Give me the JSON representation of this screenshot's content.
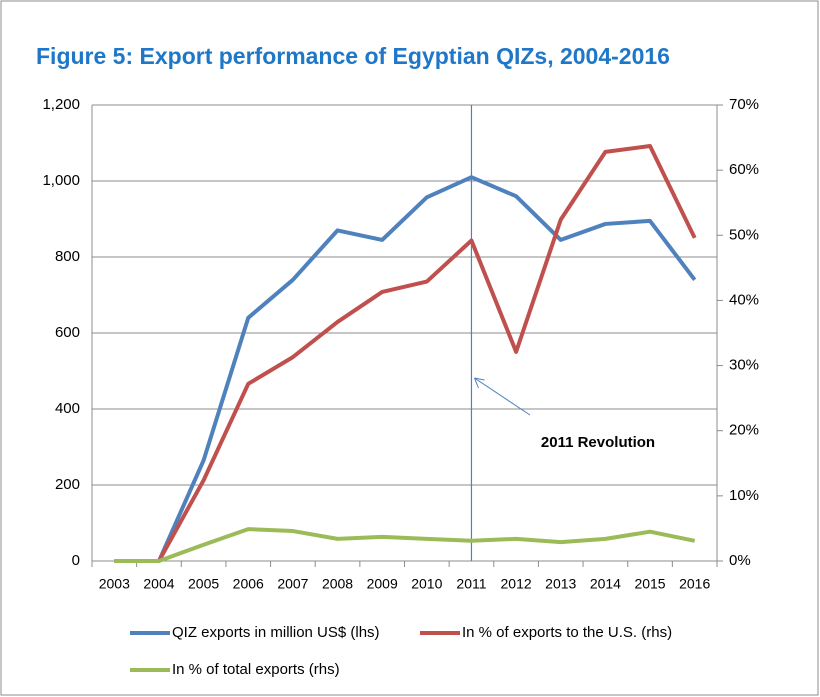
{
  "chart_data": {
    "type": "line",
    "title": "Figure 5:  Export performance of Egyptian QIZs, 2004-2016",
    "categories": [
      "2003",
      "2004",
      "2005",
      "2006",
      "2007",
      "2008",
      "2009",
      "2010",
      "2011",
      "2012",
      "2013",
      "2014",
      "2015",
      "2016"
    ],
    "series": [
      {
        "name": "QIZ exports in million US$ (lhs)",
        "color": "#4f81bd",
        "axis": "y",
        "values": [
          0,
          0,
          265,
          640,
          740,
          870,
          845,
          957,
          1010,
          960,
          845,
          887,
          895,
          740
        ]
      },
      {
        "name": "In % of exports to the U.S. (rhs)",
        "color": "#c0504d",
        "axis": "y2",
        "values": [
          0,
          0,
          12.4,
          27.2,
          31.3,
          36.7,
          41.3,
          42.9,
          49.2,
          32.1,
          52.4,
          62.8,
          63.7,
          49.6
        ]
      },
      {
        "name": "In % of total exports (rhs)",
        "color": "#9bbb59",
        "axis": "y2",
        "values": [
          0,
          0,
          2.5,
          4.9,
          4.6,
          3.4,
          3.7,
          3.4,
          3.1,
          3.4,
          2.9,
          3.4,
          4.5,
          3.1
        ]
      }
    ],
    "ylim": [
      0,
      1200
    ],
    "yticks": [
      0,
      200,
      400,
      600,
      800,
      {
        "value": 1000,
        "label": "1,000"
      },
      {
        "value": 1200,
        "label": "1,200"
      }
    ],
    "y2lim": [
      0,
      70
    ],
    "y2ticks": [
      {
        "value": 0,
        "label": "0%"
      },
      {
        "value": 10,
        "label": "10%"
      },
      {
        "value": 20,
        "label": "20%"
      },
      {
        "value": 30,
        "label": "30%"
      },
      {
        "value": 40,
        "label": "40%"
      },
      {
        "value": 50,
        "label": "50%"
      },
      {
        "value": 60,
        "label": "60%"
      },
      {
        "value": 70,
        "label": "70%"
      }
    ],
    "grid": true,
    "annotation": {
      "text": "2011 Revolution",
      "x": "2011"
    }
  }
}
